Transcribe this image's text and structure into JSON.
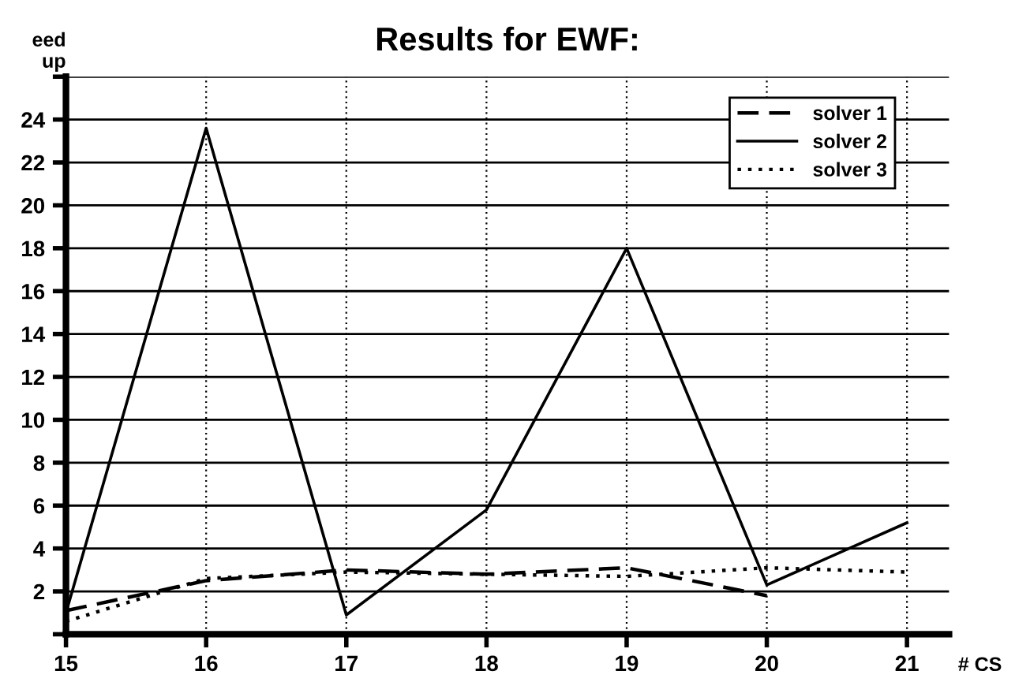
{
  "chart_data": {
    "type": "line",
    "title": "Results for EWF:",
    "xlabel": "# CS",
    "ylabel": "eed\nup",
    "x": [
      15,
      16,
      17,
      18,
      19,
      20,
      21
    ],
    "series": [
      {
        "name": "solver 1",
        "color": "#000000",
        "line_style": "dashed",
        "values": [
          1.1,
          2.5,
          3.0,
          2.8,
          3.1,
          1.8,
          null
        ]
      },
      {
        "name": "solver 2",
        "color": "#000000",
        "line_style": "solid",
        "values": [
          1.0,
          23.6,
          0.9,
          5.8,
          18,
          2.3,
          5.2
        ]
      },
      {
        "name": "solver 3",
        "color": "#000000",
        "line_style": "dotted",
        "values": [
          0.6,
          2.6,
          2.9,
          2.8,
          2.7,
          3.1,
          2.9
        ]
      }
    ],
    "xlim": [
      15,
      21.3
    ],
    "xticks": [
      15,
      16,
      17,
      18,
      19,
      20,
      21
    ],
    "ylim": [
      0,
      26
    ],
    "yticks": [
      {
        "value": 0,
        "label": null
      },
      2,
      4,
      6,
      8,
      10,
      12,
      14,
      16,
      18,
      20,
      22,
      24,
      {
        "value": 26,
        "label": null
      }
    ],
    "grid": true,
    "legend": "top right",
    "marker": "none"
  }
}
